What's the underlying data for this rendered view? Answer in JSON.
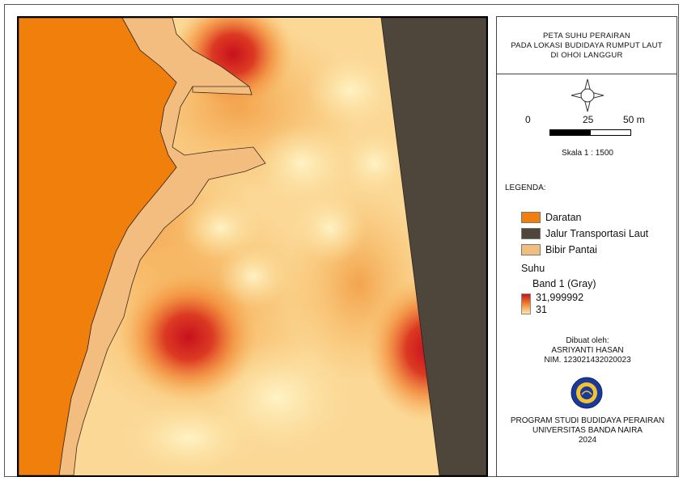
{
  "title": {
    "lines": [
      "PETA SUHU PERAIRAN",
      "PADA LOKASI BUDIDAYA RUMPUT LAUT",
      "DI OHOI LANGGUR"
    ]
  },
  "north_arrow": {
    "icon": "compass-rose-icon"
  },
  "scalebar": {
    "ticks": [
      "0",
      "25",
      "50 m"
    ],
    "ratio": "Skala 1 : 1500"
  },
  "legend": {
    "heading": "LEGENDA:",
    "items": [
      {
        "label": "Daratan",
        "color": "#f07f0c"
      },
      {
        "label": "Jalur Transportasi Laut",
        "color": "#4e453b"
      },
      {
        "label": "Bibir Pantai",
        "color": "#f4bd80"
      }
    ],
    "raster_title": "Suhu",
    "raster_band": "Band 1 (Gray)",
    "raster_max": "31,999992",
    "raster_min": "31",
    "ramp_colors": [
      "#c8141e",
      "#f07828",
      "#fde8a8"
    ]
  },
  "credits": {
    "made_by_label": "Dibuat oleh:",
    "author": "ASRIYANTI HASAN",
    "nim": "NIM. 123021432020023"
  },
  "logo": {
    "icon": "university-seal-icon"
  },
  "footer": {
    "lines": [
      "PROGRAM STUDI BUDIDAYA PERAIRAN",
      "UNIVERSITAS BANDA NAIRA",
      "2024"
    ]
  }
}
